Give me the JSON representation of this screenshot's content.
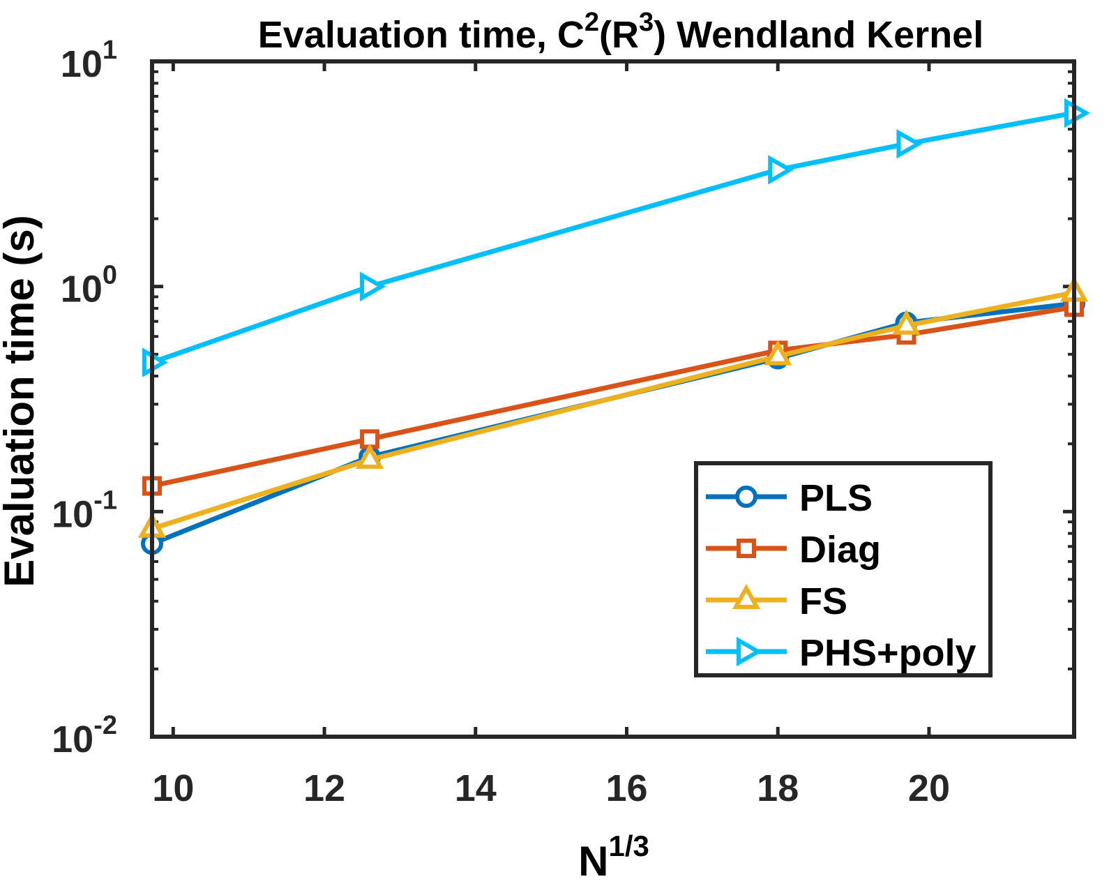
{
  "chart_data": {
    "type": "line",
    "title": {
      "prefix": "Evaluation time, C",
      "sup1": "2",
      "middle": "(R",
      "sup2": "3",
      "suffix": ") Wendland Kernel"
    },
    "xlabel": {
      "base": "N",
      "sup": "1/3"
    },
    "ylabel": "Evaluation time (s)",
    "x_scale": "linear",
    "y_scale": "log",
    "xlim": [
      9.72,
      21.92
    ],
    "ylim": [
      0.01,
      10
    ],
    "x_ticks": [
      10,
      12,
      14,
      16,
      18,
      20
    ],
    "x_tick_labels": [
      "10",
      "12",
      "14",
      "16",
      "18",
      "20"
    ],
    "y_ticks": [
      0.01,
      0.1,
      1,
      10
    ],
    "y_tick_labels": [
      {
        "base": "10",
        "exp": "-2"
      },
      {
        "base": "10",
        "exp": "-1"
      },
      {
        "base": "10",
        "exp": "0"
      },
      {
        "base": "10",
        "exp": "1"
      }
    ],
    "grid": false,
    "legend_position": "bottom-right",
    "x": [
      9.72,
      12.6,
      18.0,
      19.7,
      21.92
    ],
    "series": [
      {
        "name": "PLS",
        "color": "#0072BD",
        "marker": "circle",
        "values": [
          0.072,
          0.175,
          0.48,
          0.69,
          0.84
        ]
      },
      {
        "name": "Diag",
        "color": "#D95319",
        "marker": "square",
        "values": [
          0.13,
          0.21,
          0.52,
          0.61,
          0.81
        ]
      },
      {
        "name": "FS",
        "color": "#EDB120",
        "marker": "triangle-up",
        "values": [
          0.084,
          0.17,
          0.49,
          0.67,
          0.94
        ]
      },
      {
        "name": "PHS+poly",
        "color": "#00BFFF",
        "marker": "triangle-right",
        "values": [
          0.46,
          1.0,
          3.3,
          4.3,
          5.9
        ]
      }
    ]
  }
}
